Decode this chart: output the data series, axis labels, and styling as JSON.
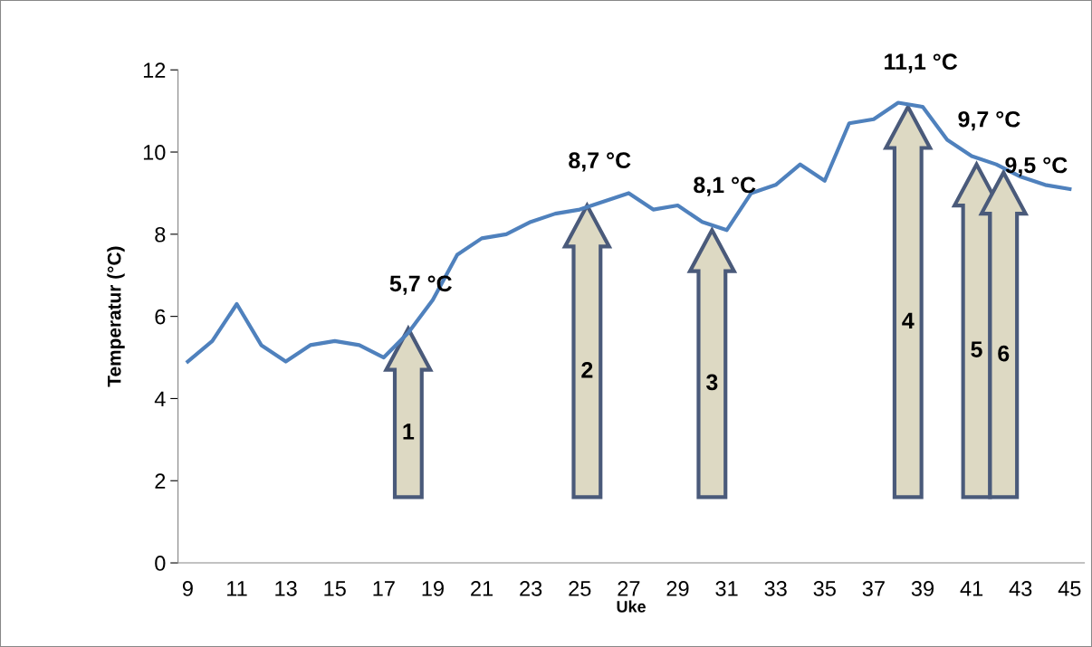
{
  "chart_data": {
    "type": "line",
    "xlabel": "Uke",
    "ylabel": "Temperatur (°C)",
    "x": [
      9,
      10,
      11,
      12,
      13,
      14,
      15,
      16,
      17,
      18,
      19,
      20,
      21,
      22,
      23,
      24,
      25,
      26,
      27,
      28,
      29,
      30,
      31,
      32,
      33,
      34,
      35,
      36,
      37,
      38,
      39,
      40,
      41,
      42,
      43,
      44,
      45
    ],
    "series": [
      {
        "color": "#4f81bd",
        "values": [
          4.9,
          5.4,
          6.3,
          5.3,
          4.9,
          5.3,
          5.4,
          5.3,
          5.0,
          5.6,
          6.4,
          7.5,
          7.9,
          8.0,
          8.3,
          8.5,
          8.6,
          8.8,
          9.0,
          8.6,
          8.7,
          8.3,
          8.1,
          9.0,
          9.2,
          9.7,
          9.3,
          10.7,
          10.8,
          11.2,
          11.1,
          10.3,
          9.9,
          9.7,
          9.4,
          9.2,
          9.1
        ]
      }
    ],
    "xlim": [
      8.6,
      45.6
    ],
    "xticks": [
      9,
      11,
      13,
      15,
      17,
      19,
      21,
      23,
      25,
      27,
      29,
      31,
      33,
      35,
      37,
      39,
      41,
      43,
      45
    ],
    "ylim": [
      0,
      12
    ],
    "yticks": [
      0,
      2,
      4,
      6,
      8,
      10,
      12
    ],
    "grid": false,
    "legend": false,
    "marker": "none",
    "line_style": "solid",
    "annotations": [
      {
        "text": "5,7 °C",
        "x": 18,
        "y": 5.7
      },
      {
        "text": "8,7 °C",
        "x": 25.3,
        "y": 8.7
      },
      {
        "text": "8,1 °C",
        "x": 30.4,
        "y": 8.1
      },
      {
        "text": "11,1 °C",
        "x": 38.4,
        "y": 11.1
      },
      {
        "text": "9,7 °C",
        "x": 41.2,
        "y": 9.7
      },
      {
        "text": "9,5 °C",
        "x": 42.3,
        "y": 9.5
      },
      "1",
      "2",
      "3",
      "4",
      "5",
      "6"
    ]
  }
}
